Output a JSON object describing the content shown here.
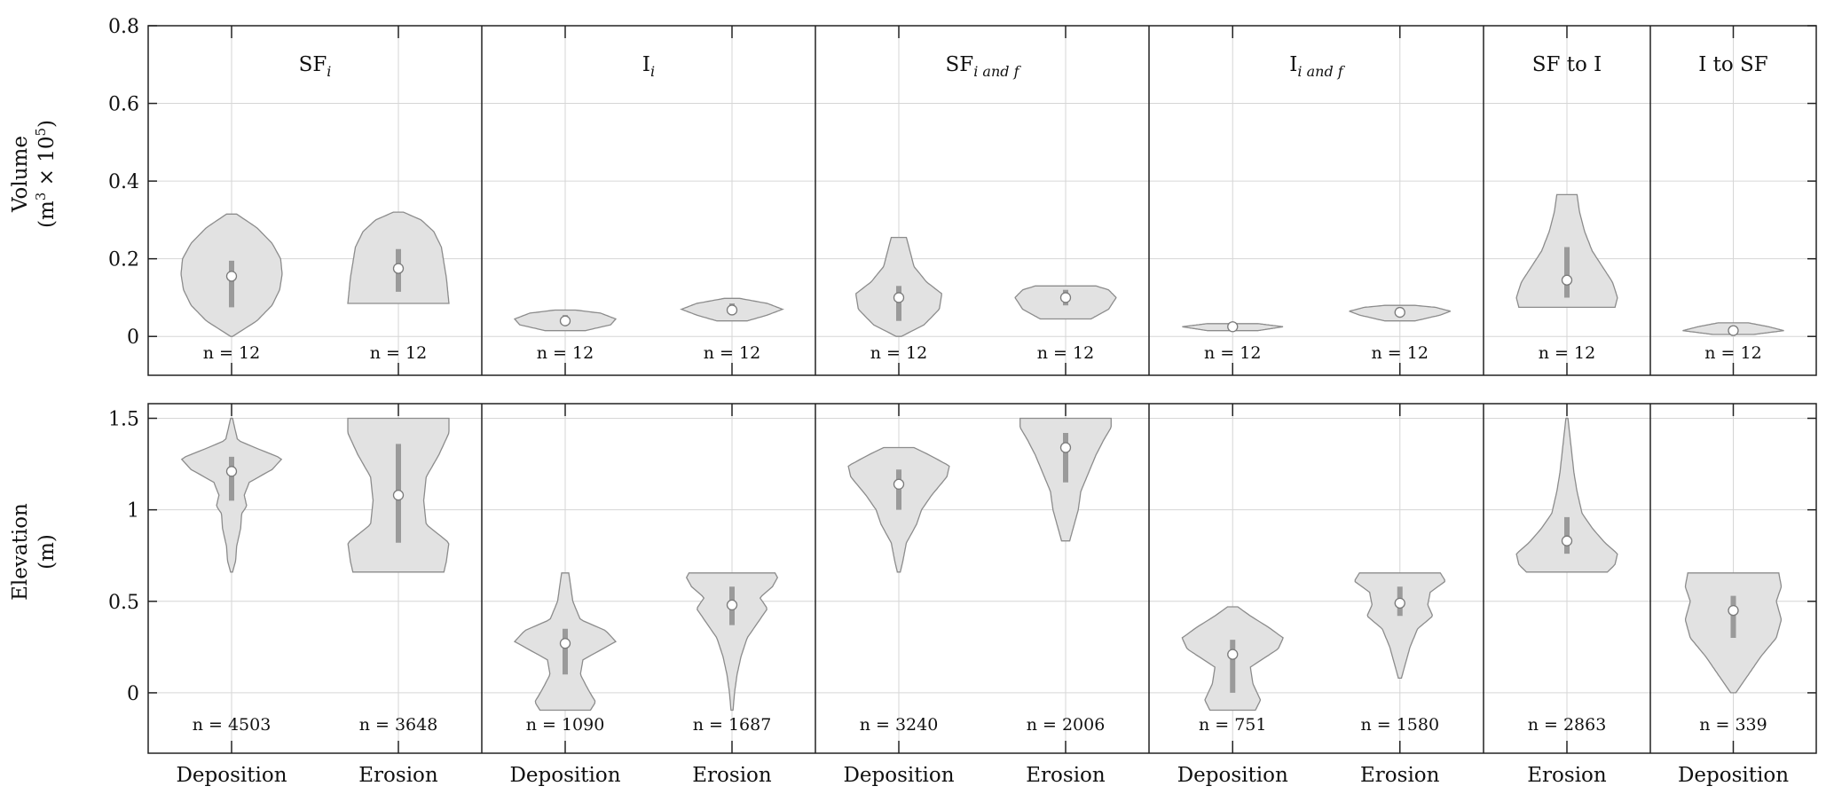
{
  "chart_data": {
    "type": "violin",
    "panel_groups": [
      {
        "title": "SF",
        "title_sub": "i",
        "x_categories": [
          "Deposition",
          "Erosion"
        ]
      },
      {
        "title": "I",
        "title_sub": "i",
        "x_categories": [
          "Deposition",
          "Erosion"
        ]
      },
      {
        "title": "SF",
        "title_sub": "i and f",
        "x_categories": [
          "Deposition",
          "Erosion"
        ]
      },
      {
        "title": "I",
        "title_sub": "i and f",
        "x_categories": [
          "Deposition",
          "Erosion"
        ]
      },
      {
        "title": "SF to I",
        "title_sub": "",
        "x_categories": [
          "Erosion"
        ]
      },
      {
        "title": "I to SF",
        "title_sub": "",
        "x_categories": [
          "Deposition"
        ]
      }
    ],
    "rows": [
      {
        "ylabel_line1": "Volume",
        "ylabel_line2": "(m",
        "ylabel_sup1": "3",
        "ylabel_times": " × 10",
        "ylabel_sup2": "5",
        "ylabel_close": ")",
        "ylim": [
          -0.1,
          0.8
        ],
        "yticks": [
          0,
          0.2,
          0.4,
          0.6,
          0.8
        ],
        "ytick_labels": [
          "0",
          "0.2",
          "0.4",
          "0.6",
          "0.8"
        ],
        "violins": [
          {
            "group": 0,
            "category": "Deposition",
            "n_label": "n = 12",
            "median": 0.155,
            "q1": 0.075,
            "q3": 0.195,
            "min": 0.0,
            "max": 0.315,
            "profile": [
              [
                0.0,
                0.02
              ],
              [
                0.04,
                0.5
              ],
              [
                0.08,
                0.8
              ],
              [
                0.12,
                0.95
              ],
              [
                0.16,
                1.0
              ],
              [
                0.2,
                0.97
              ],
              [
                0.24,
                0.8
              ],
              [
                0.28,
                0.5
              ],
              [
                0.315,
                0.1
              ]
            ]
          },
          {
            "group": 0,
            "category": "Erosion",
            "n_label": "n = 12",
            "median": 0.175,
            "q1": 0.115,
            "q3": 0.225,
            "min": 0.085,
            "max": 0.32,
            "profile": [
              [
                0.085,
                1.0
              ],
              [
                0.11,
                0.98
              ],
              [
                0.15,
                0.95
              ],
              [
                0.19,
                0.9
              ],
              [
                0.23,
                0.85
              ],
              [
                0.27,
                0.7
              ],
              [
                0.3,
                0.45
              ],
              [
                0.32,
                0.1
              ]
            ]
          },
          {
            "group": 1,
            "category": "Deposition",
            "n_label": "n = 12",
            "median": 0.04,
            "q1": 0.03,
            "q3": 0.055,
            "min": 0.015,
            "max": 0.068,
            "profile": [
              [
                0.015,
                0.4
              ],
              [
                0.03,
                0.9
              ],
              [
                0.045,
                1.0
              ],
              [
                0.06,
                0.7
              ],
              [
                0.068,
                0.2
              ]
            ]
          },
          {
            "group": 1,
            "category": "Erosion",
            "n_label": "n = 12",
            "median": 0.068,
            "q1": 0.055,
            "q3": 0.085,
            "min": 0.04,
            "max": 0.098,
            "profile": [
              [
                0.04,
                0.3
              ],
              [
                0.055,
                0.7
              ],
              [
                0.07,
                1.0
              ],
              [
                0.085,
                0.7
              ],
              [
                0.098,
                0.15
              ]
            ]
          },
          {
            "group": 2,
            "category": "Deposition",
            "n_label": "n = 12",
            "median": 0.1,
            "q1": 0.04,
            "q3": 0.13,
            "min": 0.0,
            "max": 0.255,
            "profile": [
              [
                0.0,
                0.05
              ],
              [
                0.03,
                0.5
              ],
              [
                0.07,
                0.8
              ],
              [
                0.11,
                0.85
              ],
              [
                0.14,
                0.55
              ],
              [
                0.18,
                0.3
              ],
              [
                0.22,
                0.22
              ],
              [
                0.255,
                0.15
              ]
            ]
          },
          {
            "group": 2,
            "category": "Erosion",
            "n_label": "n = 12",
            "median": 0.1,
            "q1": 0.08,
            "q3": 0.12,
            "min": 0.045,
            "max": 0.13,
            "profile": [
              [
                0.045,
                0.5
              ],
              [
                0.07,
                0.85
              ],
              [
                0.1,
                1.0
              ],
              [
                0.12,
                0.85
              ],
              [
                0.13,
                0.6
              ]
            ]
          },
          {
            "group": 3,
            "category": "Deposition",
            "n_label": "n = 12",
            "median": 0.025,
            "q1": 0.02,
            "q3": 0.03,
            "min": 0.015,
            "max": 0.033,
            "profile": [
              [
                0.015,
                0.5
              ],
              [
                0.025,
                1.0
              ],
              [
                0.033,
                0.5
              ]
            ]
          },
          {
            "group": 3,
            "category": "Erosion",
            "n_label": "n = 12",
            "median": 0.062,
            "q1": 0.055,
            "q3": 0.07,
            "min": 0.04,
            "max": 0.08,
            "profile": [
              [
                0.04,
                0.3
              ],
              [
                0.055,
                0.8
              ],
              [
                0.065,
                1.0
              ],
              [
                0.075,
                0.7
              ],
              [
                0.08,
                0.3
              ]
            ]
          },
          {
            "group": 4,
            "category": "Erosion",
            "n_label": "n = 12",
            "median": 0.145,
            "q1": 0.1,
            "q3": 0.23,
            "min": 0.075,
            "max": 0.365,
            "profile": [
              [
                0.075,
                0.95
              ],
              [
                0.1,
                1.0
              ],
              [
                0.14,
                0.9
              ],
              [
                0.18,
                0.7
              ],
              [
                0.22,
                0.5
              ],
              [
                0.27,
                0.35
              ],
              [
                0.32,
                0.25
              ],
              [
                0.365,
                0.2
              ]
            ]
          },
          {
            "group": 5,
            "category": "Deposition",
            "n_label": "n = 12",
            "median": 0.015,
            "q1": 0.01,
            "q3": 0.022,
            "min": 0.005,
            "max": 0.035,
            "profile": [
              [
                0.005,
                0.4
              ],
              [
                0.015,
                1.0
              ],
              [
                0.025,
                0.7
              ],
              [
                0.035,
                0.3
              ]
            ]
          }
        ]
      },
      {
        "ylabel_line1": "Elevation",
        "ylabel_line2": "(m)",
        "ylabel_sup1": "",
        "ylabel_times": "",
        "ylabel_sup2": "",
        "ylabel_close": "",
        "ylim": [
          -0.33,
          1.58
        ],
        "yticks": [
          0,
          0.5,
          1,
          1.5
        ],
        "ytick_labels": [
          "0",
          "0.5",
          "1",
          "1.5"
        ],
        "violins": [
          {
            "group": 0,
            "category": "Deposition",
            "n_label": "n = 4503",
            "median": 1.21,
            "q1": 1.05,
            "q3": 1.29,
            "min": 0.66,
            "max": 1.5,
            "profile": [
              [
                0.66,
                0.02
              ],
              [
                0.72,
                0.08
              ],
              [
                0.8,
                0.1
              ],
              [
                0.9,
                0.18
              ],
              [
                0.98,
                0.2
              ],
              [
                1.02,
                0.3
              ],
              [
                1.08,
                0.25
              ],
              [
                1.15,
                0.35
              ],
              [
                1.22,
                0.8
              ],
              [
                1.28,
                1.0
              ],
              [
                1.33,
                0.55
              ],
              [
                1.38,
                0.12
              ],
              [
                1.45,
                0.06
              ],
              [
                1.5,
                0.02
              ]
            ]
          },
          {
            "group": 0,
            "category": "Erosion",
            "n_label": "n = 3648",
            "median": 1.08,
            "q1": 0.82,
            "q3": 1.36,
            "min": 0.66,
            "max": 1.5,
            "profile": [
              [
                0.66,
                0.9
              ],
              [
                0.72,
                0.95
              ],
              [
                0.82,
                1.0
              ],
              [
                0.92,
                0.55
              ],
              [
                1.05,
                0.5
              ],
              [
                1.18,
                0.55
              ],
              [
                1.3,
                0.8
              ],
              [
                1.42,
                1.0
              ],
              [
                1.5,
                1.0
              ]
            ]
          },
          {
            "group": 1,
            "category": "Deposition",
            "n_label": "n = 1090",
            "median": 0.27,
            "q1": 0.1,
            "q3": 0.35,
            "min": -0.095,
            "max": 0.655,
            "profile": [
              [
                -0.095,
                0.5
              ],
              [
                -0.05,
                0.6
              ],
              [
                0.02,
                0.45
              ],
              [
                0.1,
                0.3
              ],
              [
                0.18,
                0.35
              ],
              [
                0.28,
                1.0
              ],
              [
                0.34,
                0.8
              ],
              [
                0.4,
                0.3
              ],
              [
                0.5,
                0.15
              ],
              [
                0.6,
                0.1
              ],
              [
                0.655,
                0.07
              ]
            ]
          },
          {
            "group": 1,
            "category": "Erosion",
            "n_label": "n = 1687",
            "median": 0.48,
            "q1": 0.37,
            "q3": 0.58,
            "min": -0.095,
            "max": 0.655,
            "profile": [
              [
                -0.095,
                0.02
              ],
              [
                0.0,
                0.05
              ],
              [
                0.1,
                0.1
              ],
              [
                0.2,
                0.18
              ],
              [
                0.3,
                0.3
              ],
              [
                0.4,
                0.55
              ],
              [
                0.46,
                0.7
              ],
              [
                0.52,
                0.55
              ],
              [
                0.58,
                0.8
              ],
              [
                0.63,
                0.9
              ],
              [
                0.655,
                0.85
              ]
            ]
          },
          {
            "group": 2,
            "category": "Deposition",
            "n_label": "n = 3240",
            "median": 1.14,
            "q1": 1.0,
            "q3": 1.22,
            "min": 0.66,
            "max": 1.34,
            "profile": [
              [
                0.66,
                0.03
              ],
              [
                0.72,
                0.08
              ],
              [
                0.82,
                0.15
              ],
              [
                0.92,
                0.35
              ],
              [
                1.0,
                0.45
              ],
              [
                1.08,
                0.65
              ],
              [
                1.18,
                0.95
              ],
              [
                1.24,
                1.0
              ],
              [
                1.3,
                0.6
              ],
              [
                1.34,
                0.3
              ]
            ]
          },
          {
            "group": 2,
            "category": "Erosion",
            "n_label": "n = 2006",
            "median": 1.34,
            "q1": 1.15,
            "q3": 1.42,
            "min": 0.83,
            "max": 1.5,
            "profile": [
              [
                0.83,
                0.08
              ],
              [
                0.9,
                0.15
              ],
              [
                1.0,
                0.25
              ],
              [
                1.1,
                0.3
              ],
              [
                1.2,
                0.45
              ],
              [
                1.3,
                0.6
              ],
              [
                1.38,
                0.75
              ],
              [
                1.45,
                0.9
              ],
              [
                1.5,
                0.9
              ]
            ]
          },
          {
            "group": 3,
            "category": "Deposition",
            "n_label": "n = 751",
            "median": 0.21,
            "q1": 0.0,
            "q3": 0.29,
            "min": -0.095,
            "max": 0.47,
            "profile": [
              [
                -0.095,
                0.45
              ],
              [
                -0.04,
                0.55
              ],
              [
                0.05,
                0.4
              ],
              [
                0.14,
                0.35
              ],
              [
                0.24,
                0.9
              ],
              [
                0.3,
                1.0
              ],
              [
                0.36,
                0.7
              ],
              [
                0.42,
                0.35
              ],
              [
                0.47,
                0.1
              ]
            ]
          },
          {
            "group": 3,
            "category": "Erosion",
            "n_label": "n = 1580",
            "median": 0.49,
            "q1": 0.42,
            "q3": 0.58,
            "min": 0.08,
            "max": 0.655,
            "profile": [
              [
                0.08,
                0.03
              ],
              [
                0.15,
                0.1
              ],
              [
                0.25,
                0.2
              ],
              [
                0.35,
                0.35
              ],
              [
                0.42,
                0.65
              ],
              [
                0.48,
                0.55
              ],
              [
                0.55,
                0.6
              ],
              [
                0.61,
                0.9
              ],
              [
                0.655,
                0.8
              ]
            ]
          },
          {
            "group": 4,
            "category": "Erosion",
            "n_label": "n = 2863",
            "median": 0.83,
            "q1": 0.76,
            "q3": 0.96,
            "min": 0.66,
            "max": 1.5,
            "profile": [
              [
                0.66,
                0.8
              ],
              [
                0.7,
                0.95
              ],
              [
                0.76,
                1.0
              ],
              [
                0.82,
                0.75
              ],
              [
                0.9,
                0.5
              ],
              [
                0.98,
                0.3
              ],
              [
                1.1,
                0.2
              ],
              [
                1.2,
                0.14
              ],
              [
                1.3,
                0.1
              ],
              [
                1.4,
                0.06
              ],
              [
                1.5,
                0.02
              ]
            ]
          },
          {
            "group": 5,
            "category": "Deposition",
            "n_label": "n = 339",
            "median": 0.45,
            "q1": 0.3,
            "q3": 0.53,
            "min": 0.0,
            "max": 0.655,
            "profile": [
              [
                0.0,
                0.05
              ],
              [
                0.1,
                0.3
              ],
              [
                0.2,
                0.55
              ],
              [
                0.3,
                0.85
              ],
              [
                0.4,
                0.95
              ],
              [
                0.5,
                0.85
              ],
              [
                0.58,
                0.95
              ],
              [
                0.655,
                0.9
              ]
            ]
          }
        ]
      }
    ],
    "colors": {
      "violin_fill": "#e2e2e2",
      "violin_edge": "#8c8c8c",
      "iqr_bar": "#9a9a9a",
      "median_fill": "#ffffff",
      "grid": "#d6d6d6",
      "frame": "#222222"
    }
  }
}
